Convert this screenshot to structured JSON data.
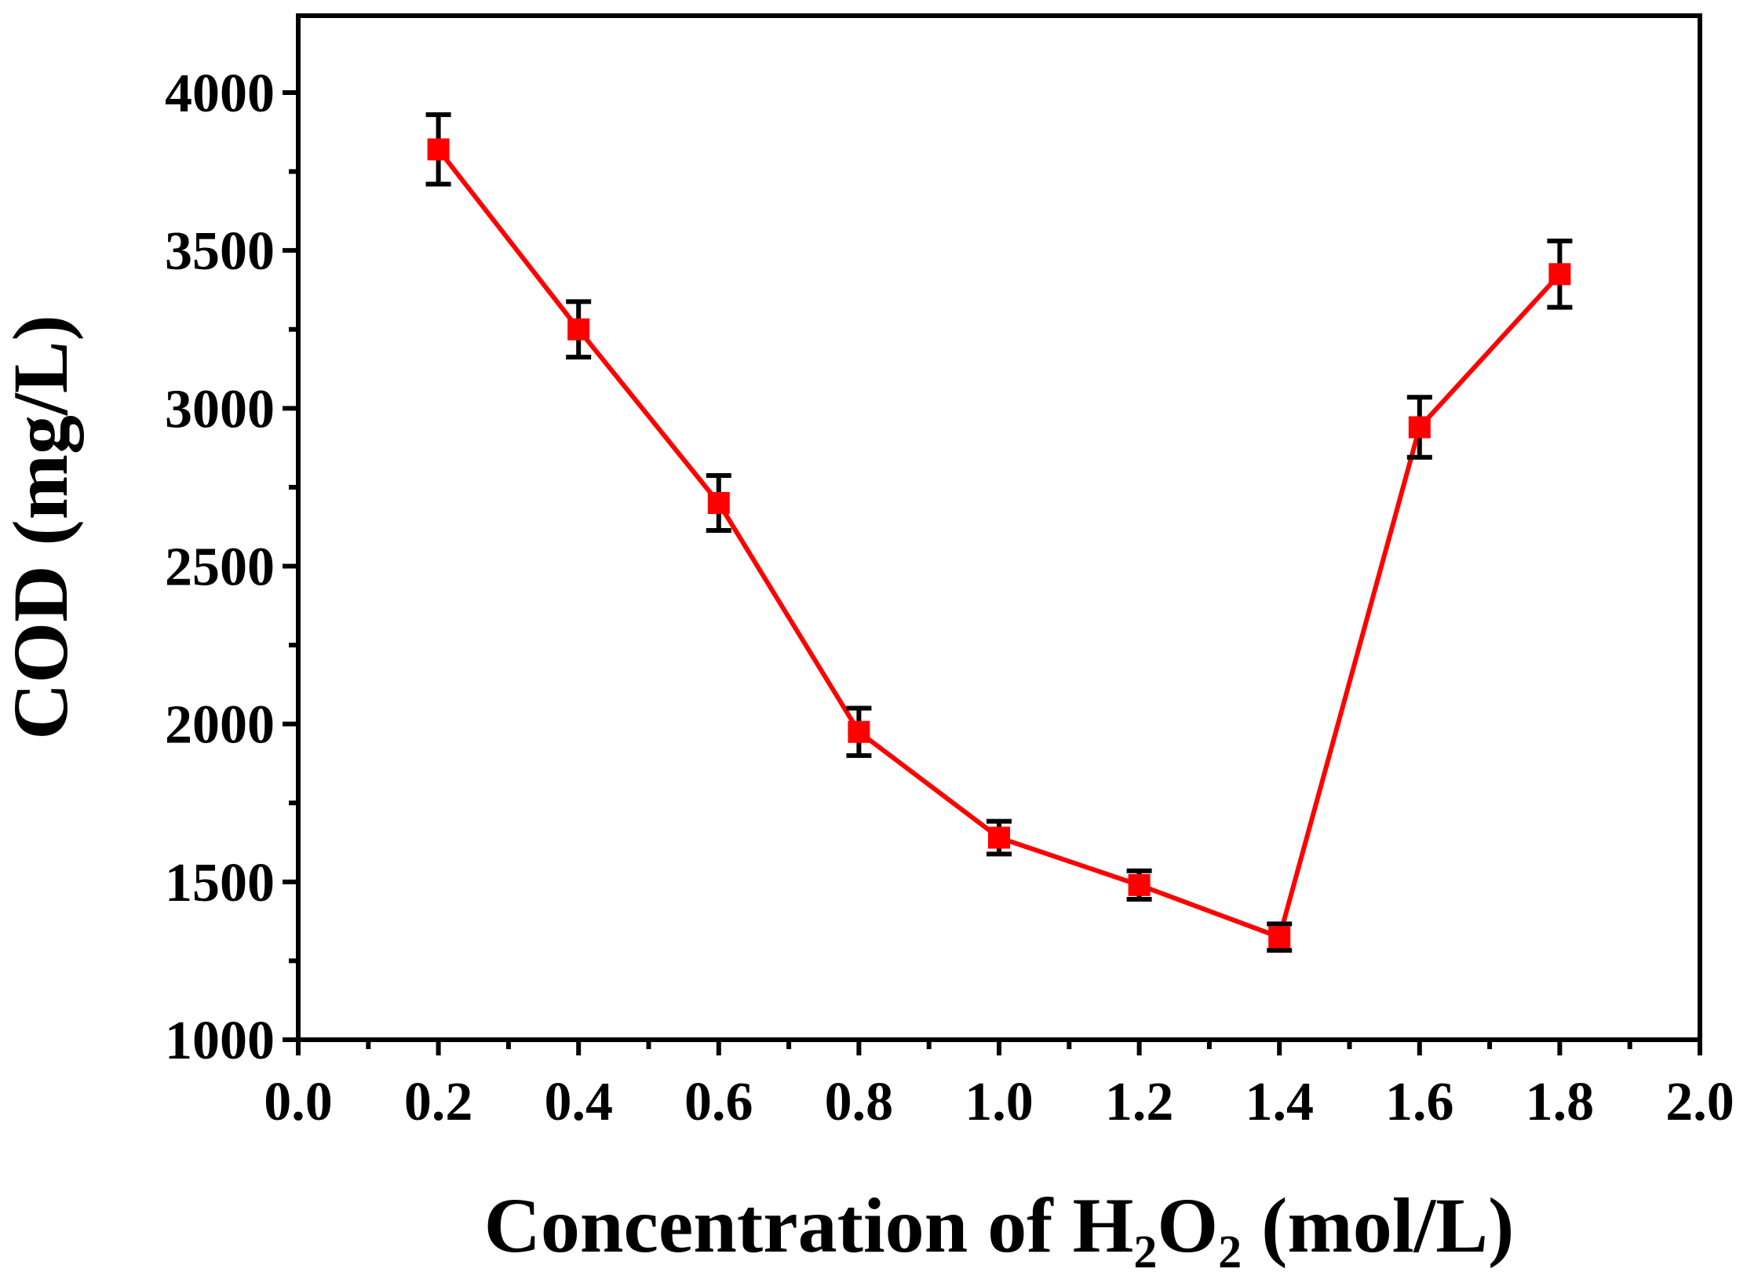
{
  "chart_data": {
    "type": "line",
    "title": "",
    "xlabel": "Concentration of H₂O₂ (mol/L)",
    "ylabel": "COD (mg/L)",
    "xlim": [
      0.0,
      2.0
    ],
    "ylim": [
      1000,
      4200
    ],
    "x_ticks": [
      "0.0",
      "0.2",
      "0.4",
      "0.6",
      "0.8",
      "1.0",
      "1.2",
      "1.4",
      "1.6",
      "1.8",
      "2.0"
    ],
    "y_ticks": [
      "1000",
      "1500",
      "2000",
      "2500",
      "3000",
      "3500",
      "4000"
    ],
    "grid": false,
    "legend": "none",
    "series": [
      {
        "name": "COD",
        "color": "#ff0000",
        "marker": "square",
        "x": [
          0.2,
          0.4,
          0.6,
          0.8,
          1.0,
          1.2,
          1.4,
          1.6,
          1.8
        ],
        "y": [
          3820,
          3250,
          2700,
          1975,
          1640,
          1490,
          1325,
          2940,
          3425
        ],
        "error": [
          110,
          88,
          87,
          75,
          52,
          45,
          42,
          95,
          105
        ]
      }
    ]
  }
}
